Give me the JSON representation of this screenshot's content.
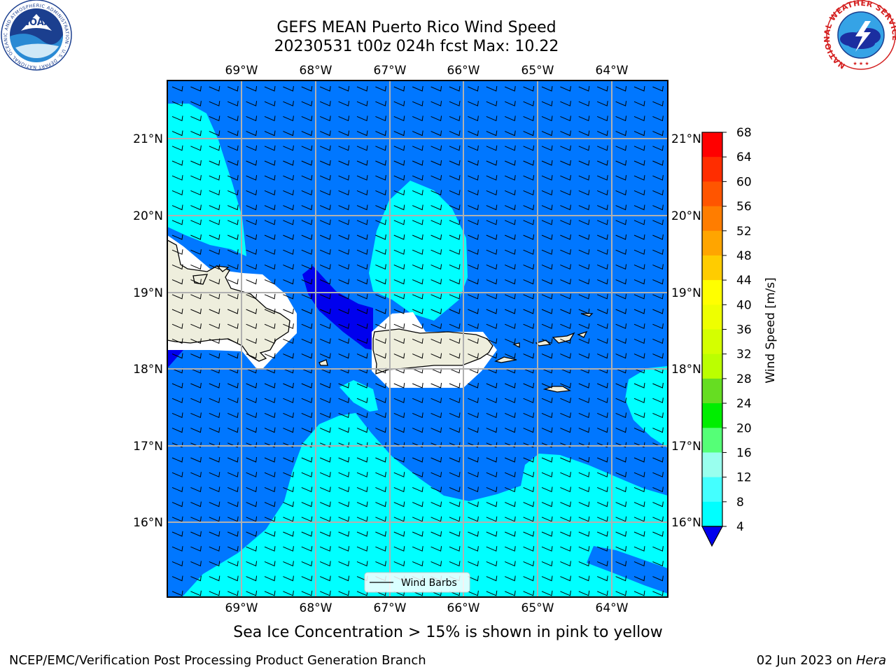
{
  "title": {
    "line1": "GEFS MEAN Puerto Rico Wind Speed",
    "line2": "20230531 t00z 024h fcst   Max: 10.22"
  },
  "map": {
    "lon_labels": [
      "69°W",
      "68°W",
      "67°W",
      "66°W",
      "65°W",
      "64°W"
    ],
    "lat_labels": [
      "21°N",
      "20°N",
      "19°N",
      "18°N",
      "17°N",
      "16°N"
    ],
    "land_color": "#eeeedd",
    "wind_barbs_legend": "Wind Barbs"
  },
  "colorbar": {
    "label": "Wind Speed [m/s]",
    "ticks": [
      "68",
      "64",
      "60",
      "56",
      "52",
      "48",
      "44",
      "40",
      "36",
      "32",
      "28",
      "24",
      "20",
      "16",
      "12",
      "8",
      "4"
    ],
    "colors": [
      "#ff0000",
      "#ff2d00",
      "#ff5500",
      "#ff7d00",
      "#ffa500",
      "#ffcc00",
      "#ffff00",
      "#eeff00",
      "#d4ff00",
      "#bbff00",
      "#66dd22",
      "#00ee00",
      "#55ff77",
      "#99ffee",
      "#44ffff",
      "#00ffff",
      "#0077ff"
    ],
    "under_color": "#0000ee"
  },
  "logos": {
    "noaa": "NOAA",
    "noaa_ring": "NATIONAL OCEANIC AND ATMOSPHERIC ADMINISTRATION · U.S. DEPARTMENT OF COMMERCE",
    "nws_ring": "NATIONAL WEATHER SERVICE"
  },
  "footer": {
    "note": "Sea Ice Concentration > 15% is shown in pink to yellow",
    "credit": "NCEP/EMC/Verification Post Processing Product Generation Branch",
    "date_prefix": "02 Jun 2023 on ",
    "date_machine": "Hera"
  }
}
